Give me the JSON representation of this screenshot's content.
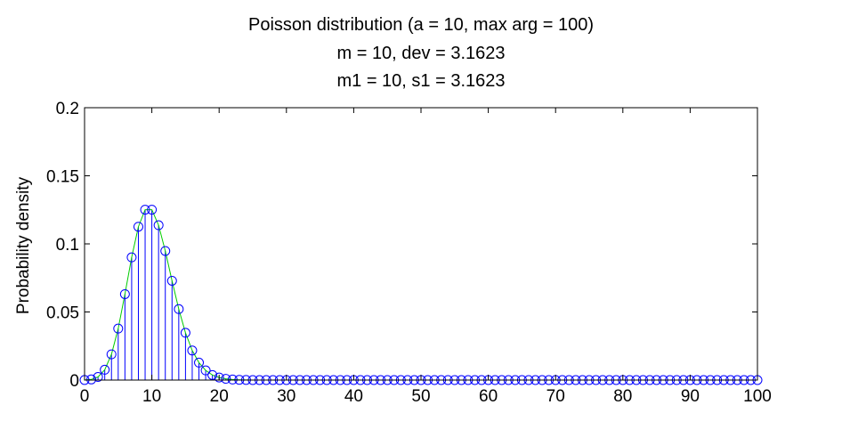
{
  "chart_data": {
    "type": "stem",
    "title_lines": [
      "Poisson distribution (a = 10, max arg = 100)",
      "m = 10, dev = 3.1623",
      "m1 = 10, s1 = 3.1623"
    ],
    "xlabel": "",
    "ylabel": "Probability density",
    "xlim": [
      0,
      100
    ],
    "ylim": [
      0,
      0.2
    ],
    "x_ticks": [
      "0",
      "10",
      "20",
      "30",
      "40",
      "50",
      "60",
      "70",
      "80",
      "90",
      "100"
    ],
    "y_ticks": [
      "0",
      "0.05",
      "0.1",
      "0.15",
      "0.2"
    ],
    "grid": false,
    "x": [
      0,
      1,
      2,
      3,
      4,
      5,
      6,
      7,
      8,
      9,
      10,
      11,
      12,
      13,
      14,
      15,
      16,
      17,
      18,
      19,
      20,
      21,
      22,
      23,
      24,
      25,
      26,
      27,
      28,
      29,
      30,
      31,
      32,
      33,
      34,
      35,
      36,
      37,
      38,
      39,
      40,
      41,
      42,
      43,
      44,
      45,
      46,
      47,
      48,
      49,
      50,
      51,
      52,
      53,
      54,
      55,
      56,
      57,
      58,
      59,
      60,
      61,
      62,
      63,
      64,
      65,
      66,
      67,
      68,
      69,
      70,
      71,
      72,
      73,
      74,
      75,
      76,
      77,
      78,
      79,
      80,
      81,
      82,
      83,
      84,
      85,
      86,
      87,
      88,
      89,
      90,
      91,
      92,
      93,
      94,
      95,
      96,
      97,
      98,
      99,
      100
    ],
    "series": [
      {
        "style": "stem",
        "color": "#0000ff",
        "marker": "circle",
        "values": [
          4.54e-05,
          0.000454,
          0.00227,
          0.00757,
          0.0189,
          0.0378,
          0.0631,
          0.0901,
          0.1126,
          0.1251,
          0.1251,
          0.1137,
          0.0948,
          0.0729,
          0.0521,
          0.0347,
          0.0217,
          0.0128,
          0.0071,
          0.0037,
          0.0019,
          0.0009,
          0.0004,
          0.0002,
          0.0001,
          0,
          0,
          0,
          0,
          0,
          0,
          0,
          0,
          0,
          0,
          0,
          0,
          0,
          0,
          0,
          0,
          0,
          0,
          0,
          0,
          0,
          0,
          0,
          0,
          0,
          0,
          0,
          0,
          0,
          0,
          0,
          0,
          0,
          0,
          0,
          0,
          0,
          0,
          0,
          0,
          0,
          0,
          0,
          0,
          0,
          0,
          0,
          0,
          0,
          0,
          0,
          0,
          0,
          0,
          0,
          0,
          0,
          0,
          0,
          0,
          0,
          0,
          0,
          0,
          0,
          0,
          0,
          0,
          0,
          0,
          0,
          0,
          0,
          0,
          0,
          0
        ]
      },
      {
        "style": "line",
        "color": "#00cc00",
        "x": [
          0,
          1,
          2,
          3,
          4,
          5,
          6,
          7,
          8,
          9,
          10,
          11,
          12,
          13,
          14,
          15,
          16,
          17,
          18,
          19,
          20,
          21,
          22,
          23,
          24,
          25,
          26,
          27,
          28,
          29,
          30,
          35,
          40,
          50,
          60,
          70,
          80,
          90,
          100
        ],
        "values": [
          4.54e-05,
          0.000454,
          0.00227,
          0.00757,
          0.0189,
          0.0378,
          0.0631,
          0.0901,
          0.1126,
          0.1251,
          0.1251,
          0.1137,
          0.0948,
          0.0729,
          0.0521,
          0.0347,
          0.0217,
          0.0128,
          0.0071,
          0.0037,
          0.0019,
          0.0009,
          0.0004,
          0.0002,
          0.0001,
          0,
          0,
          0,
          0,
          0,
          0,
          0,
          0,
          0,
          0,
          0,
          0,
          0,
          0
        ]
      }
    ]
  }
}
